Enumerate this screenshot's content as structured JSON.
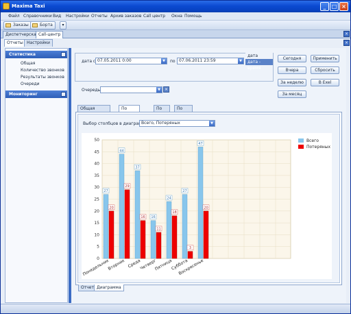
{
  "window": {
    "title": "Maxima Taxi"
  },
  "menu": [
    "Файл",
    "Справочники",
    "Вид",
    "Настройки",
    "Отчеты",
    "Архив заказов",
    "Call центр",
    "Окна",
    "Помощь"
  ],
  "toolbar": {
    "orders": "Заказы",
    "boards": "Борта"
  },
  "doc_tabs": [
    "Диспетчерская",
    "Call-центр"
  ],
  "sub_tabs": [
    "Отчеты",
    "Настройки"
  ],
  "left_panel": {
    "statistics_header": "Статистика",
    "items": [
      "Общая",
      "Количество звонков",
      "Результаты звонков",
      "Очереди"
    ],
    "monitoring_header": "Мониторинг"
  },
  "filter": {
    "date_from_label": "дата с",
    "date_from": "07.05.2011 0:00",
    "date_to_label": "по",
    "date_to": "07.06.2011 23:59",
    "mode_options": [
      "дата",
      "дата - время"
    ],
    "queue_label": "Очередь",
    "queue_value": ""
  },
  "buttons": {
    "today": "Сегодня",
    "yesterday": "Вчера",
    "week": "За неделю",
    "month": "За месяц",
    "apply": "Применить",
    "reset": "Сбросить",
    "excel": "В Exel"
  },
  "content_tabs": [
    "Общая информация",
    "По дням недели",
    "По дням",
    "По часам"
  ],
  "columns_label": "Выбор столбцов в диаграмме:",
  "columns_value": "Всего, Потеряных",
  "bottom_tabs": [
    "Отчет",
    "Диаграмма"
  ],
  "colors": {
    "total": "#88c6ec",
    "lost": "#ee0000",
    "plot_bg": "#fbf6ea",
    "grid": "#e6ddc4"
  },
  "chart_data": {
    "type": "bar",
    "categories": [
      "Понедельник",
      "Вторник",
      "Среда",
      "Четверг",
      "Пятница",
      "Суббота",
      "Воскресенье"
    ],
    "series": [
      {
        "name": "Всего",
        "values": [
          27,
          44,
          37,
          16,
          24,
          27,
          47
        ]
      },
      {
        "name": "Потеряных",
        "values": [
          20,
          29,
          16,
          11,
          18,
          3,
          20
        ]
      }
    ],
    "ylim": [
      0,
      50
    ],
    "yticks": [
      0,
      5,
      10,
      15,
      20,
      25,
      30,
      35,
      40,
      45,
      50
    ],
    "grid": true,
    "legend": "top-right"
  }
}
